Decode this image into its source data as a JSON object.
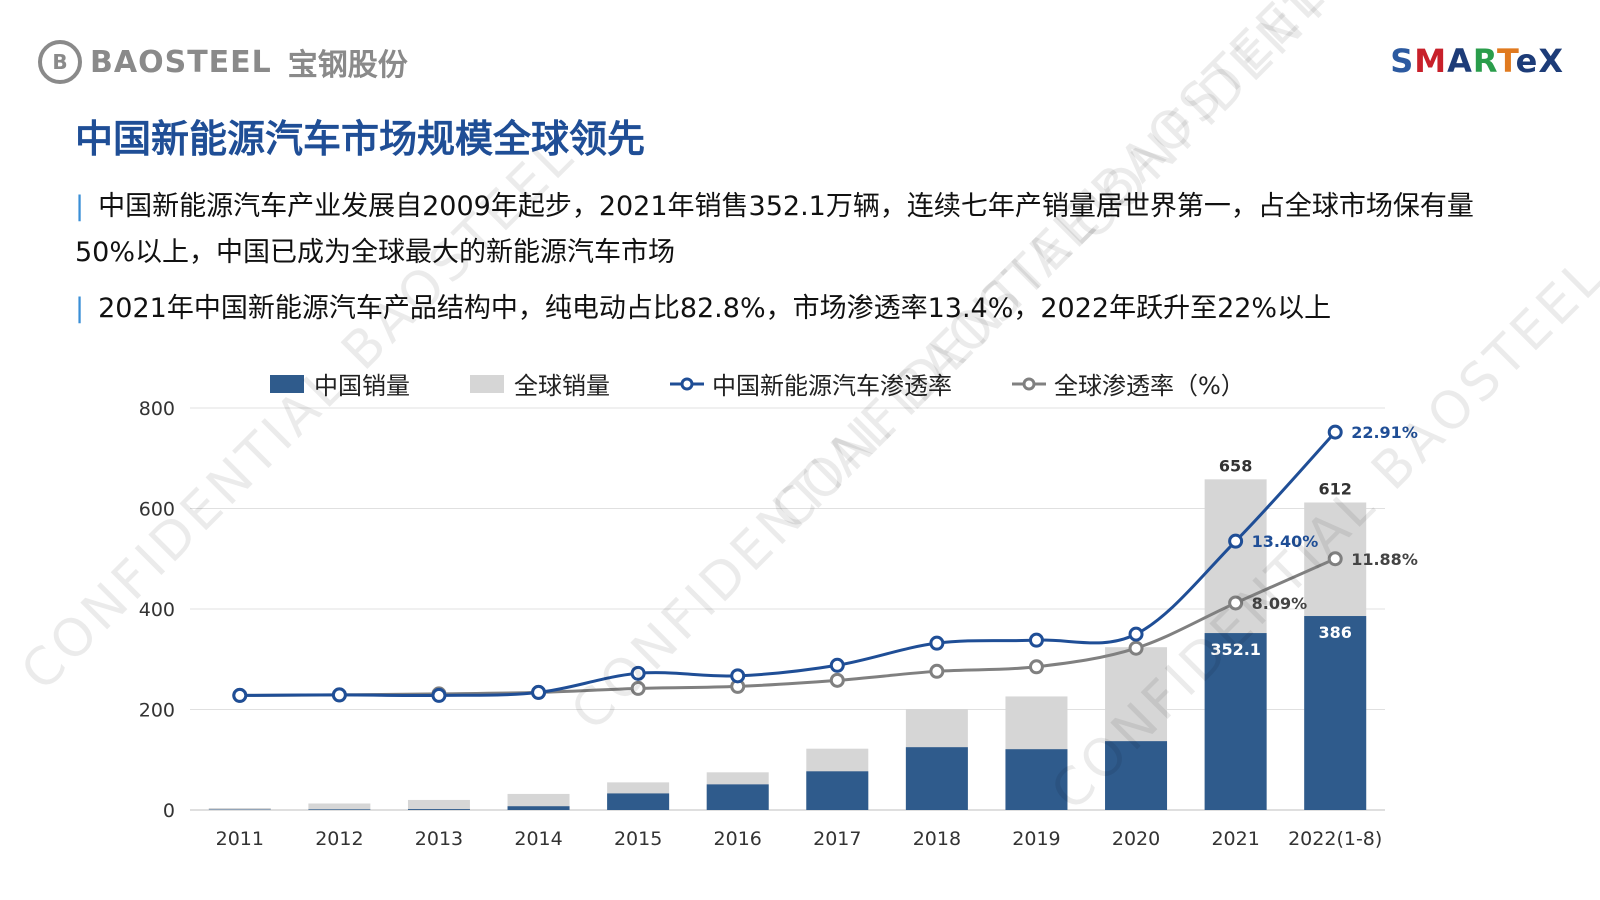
{
  "header": {
    "brand_left": "BAOSTEEL",
    "brand_left_cn": "宝钢股份",
    "brand_right": "SMARTeX"
  },
  "title": "中国新能源汽车市场规模全球领先",
  "bullets": [
    "中国新能源汽车产业发展自2009年起步，2021年销售352.1万辆，连续七年产销量居世界第一，占全球市场保有量50%以上，中国已成为全球最大的新能源汽车市场",
    "2021年中国新能源汽车产品结构中，纯电动占比82.8%，市场渗透率13.4%，2022年跃升至22%以上"
  ],
  "legend": {
    "china_sales": "中国销量",
    "global_sales": "全球销量",
    "china_penetration": "中国新能源汽车渗透率",
    "global_penetration": "全球渗透率（%）"
  },
  "colors": {
    "china_bar": "#2f5b8c",
    "global_bar": "#d6d6d6",
    "china_line": "#1f4e96",
    "global_line": "#808080",
    "title": "#1f4e96"
  },
  "watermark": "CONFIDENTIAL BAOSTEEL",
  "chart_data": {
    "type": "bar",
    "categories": [
      "2011",
      "2012",
      "2013",
      "2014",
      "2015",
      "2016",
      "2017",
      "2018",
      "2019",
      "2020",
      "2021",
      "2022(1-8)"
    ],
    "ylim": [
      0,
      800
    ],
    "yticks": [
      0,
      200,
      400,
      600,
      800
    ],
    "series": [
      {
        "name": "中国销量",
        "kind": "bar",
        "values": [
          0.8,
          1.3,
          1.8,
          7.5,
          33,
          51,
          77,
          125,
          121,
          137,
          352.1,
          386
        ]
      },
      {
        "name": "全球销量",
        "kind": "bar",
        "values": [
          4,
          13,
          20,
          32,
          55,
          75,
          122,
          201,
          226,
          324,
          658,
          612
        ]
      },
      {
        "name": "中国新能源汽车渗透率",
        "kind": "line",
        "values": [
          228,
          229,
          228,
          234,
          272,
          267,
          288,
          332,
          338,
          350,
          535,
          752
        ]
      },
      {
        "name": "全球渗透率（%）",
        "kind": "line",
        "values": [
          228,
          229,
          231,
          234,
          242,
          246,
          258,
          276,
          285,
          322,
          412,
          500
        ]
      }
    ],
    "bar_labels": {
      "2021": {
        "china": "352.1",
        "global": "658"
      },
      "2022(1-8)": {
        "china": "386",
        "global": "612"
      }
    },
    "point_labels": [
      {
        "series": "中国新能源汽车渗透率",
        "category": "2021",
        "text": "13.40%"
      },
      {
        "series": "中国新能源汽车渗透率",
        "category": "2022(1-8)",
        "text": "22.91%"
      },
      {
        "series": "全球渗透率（%）",
        "category": "2021",
        "text": "8.09%"
      },
      {
        "series": "全球渗透率（%）",
        "category": "2022(1-8)",
        "text": "11.88%"
      }
    ]
  }
}
